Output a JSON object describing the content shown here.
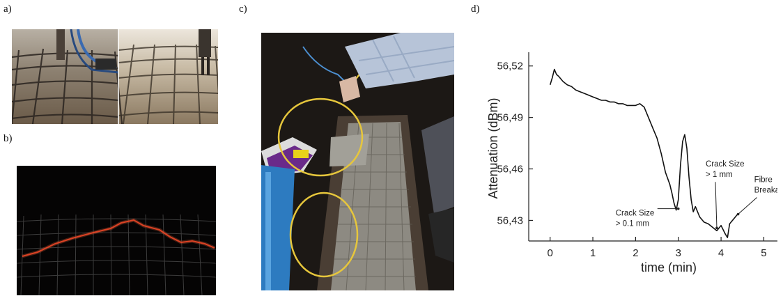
{
  "panels": {
    "a": {
      "label": "a)"
    },
    "b": {
      "label": "b)"
    },
    "c": {
      "label": "c)"
    },
    "d": {
      "label": "d)"
    }
  },
  "chart_data": {
    "type": "line",
    "title": "",
    "xlabel": "time (min)",
    "ylabel": "Attenuation (dBm)",
    "xlim": [
      -0.5,
      5.4
    ],
    "ylim": [
      56.418,
      56.528
    ],
    "xticks": [
      0,
      1,
      2,
      3,
      4,
      5
    ],
    "xtick_labels": [
      "0",
      "1",
      "2",
      "3",
      "4",
      "5"
    ],
    "yticks": [
      56.43,
      56.46,
      56.49,
      56.52
    ],
    "ytick_labels": [
      "56,43",
      "56,46",
      "56,49",
      "56,52"
    ],
    "grid": false,
    "series": [
      {
        "x": [
          0.0,
          0.05,
          0.1,
          0.15,
          0.2,
          0.3,
          0.4,
          0.5,
          0.6,
          0.7,
          0.8,
          0.9,
          1.0,
          1.1,
          1.2,
          1.3,
          1.4,
          1.5,
          1.6,
          1.7,
          1.8,
          1.9,
          2.0,
          2.1,
          2.2,
          2.3,
          2.4,
          2.5,
          2.6,
          2.7,
          2.8,
          2.85,
          2.9,
          2.95,
          3.0,
          3.05,
          3.1,
          3.15,
          3.2,
          3.25,
          3.3,
          3.35,
          3.4,
          3.5,
          3.6,
          3.7,
          3.8,
          3.9,
          4.0,
          4.1,
          4.15,
          4.2,
          4.3,
          4.4
        ],
        "y": [
          56.509,
          56.513,
          56.518,
          56.515,
          56.514,
          56.511,
          56.509,
          56.508,
          56.506,
          56.505,
          56.504,
          56.503,
          56.502,
          56.501,
          56.5,
          56.5,
          56.499,
          56.499,
          56.498,
          56.498,
          56.497,
          56.497,
          56.497,
          56.498,
          56.496,
          56.49,
          56.484,
          56.478,
          56.469,
          56.458,
          56.451,
          56.446,
          56.44,
          56.436,
          56.442,
          56.462,
          56.476,
          56.48,
          56.472,
          56.455,
          56.442,
          56.435,
          56.438,
          56.432,
          56.429,
          56.428,
          56.426,
          56.424,
          56.427,
          56.422,
          56.42,
          56.428,
          56.431,
          56.434
        ]
      }
    ],
    "annotations": [
      {
        "lines": [
          "Crack Size",
          "> 0.1 mm"
        ],
        "x": 3.0,
        "y": 56.436
      },
      {
        "lines": [
          "Crack Size",
          "> 1 mm"
        ],
        "x": 3.9,
        "y": 56.424
      },
      {
        "lines": [
          "Fibre",
          "Breakage"
        ],
        "x": 4.35,
        "y": 56.432
      }
    ]
  }
}
